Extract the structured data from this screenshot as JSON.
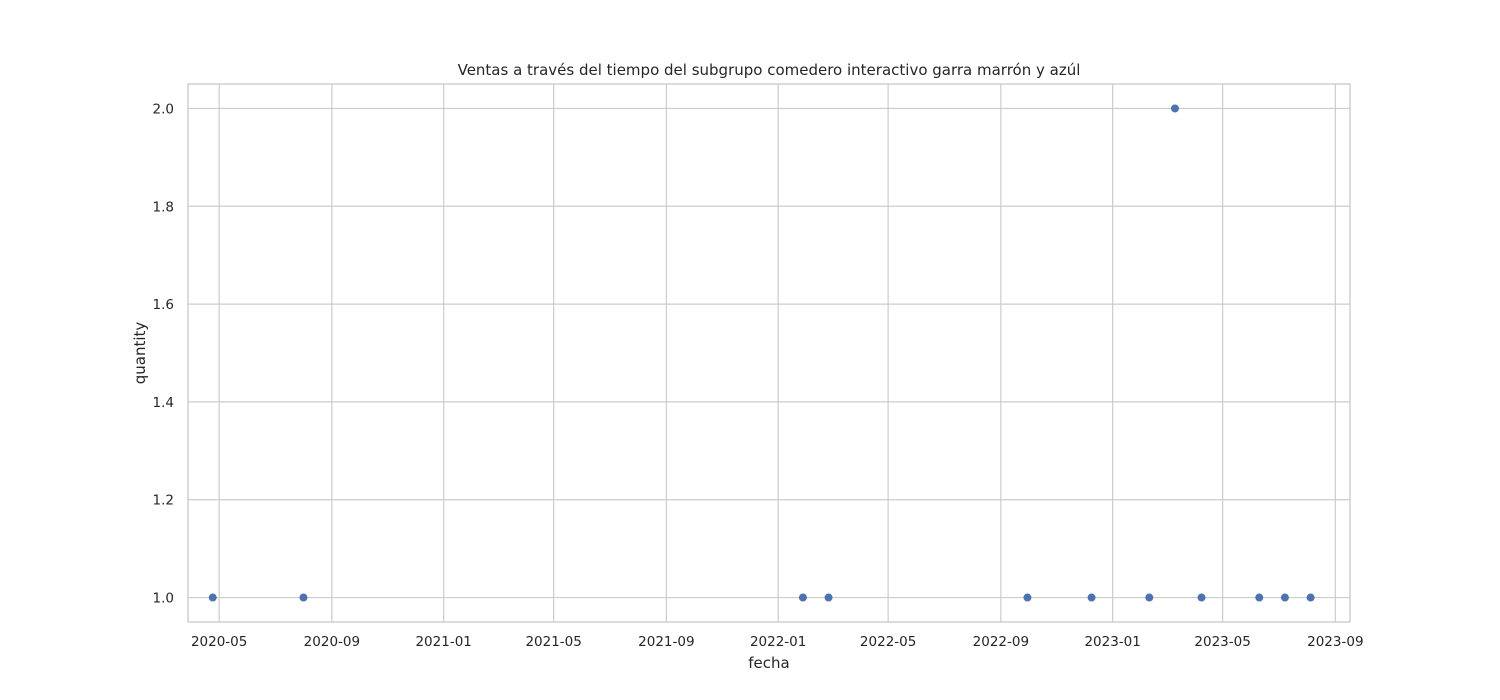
{
  "chart_data": {
    "type": "scatter",
    "title": "Ventas a través del tiempo del subgrupo comedero interactivo garra marrón y azúl",
    "xlabel": "fecha",
    "ylabel": "quantity",
    "x_ticks": [
      "2020-05",
      "2020-09",
      "2021-01",
      "2021-05",
      "2021-09",
      "2022-01",
      "2022-05",
      "2022-09",
      "2023-01",
      "2023-05",
      "2023-09"
    ],
    "y_ticks": [
      "1.0",
      "1.2",
      "1.4",
      "1.6",
      "1.8",
      "2.0"
    ],
    "xlim": [
      "2020-03-28",
      "2023-09-17"
    ],
    "ylim": [
      0.95,
      2.05
    ],
    "grid": true,
    "marker_color": "#4c72b0",
    "points": [
      {
        "x": "2020-04-24",
        "y": 1
      },
      {
        "x": "2020-08-01",
        "y": 1
      },
      {
        "x": "2022-01-28",
        "y": 1
      },
      {
        "x": "2022-02-25",
        "y": 1
      },
      {
        "x": "2022-09-30",
        "y": 1
      },
      {
        "x": "2022-12-09",
        "y": 1
      },
      {
        "x": "2023-02-10",
        "y": 1
      },
      {
        "x": "2023-03-10",
        "y": 2
      },
      {
        "x": "2023-04-08",
        "y": 1
      },
      {
        "x": "2023-06-10",
        "y": 1
      },
      {
        "x": "2023-07-08",
        "y": 1
      },
      {
        "x": "2023-08-05",
        "y": 1
      }
    ]
  }
}
